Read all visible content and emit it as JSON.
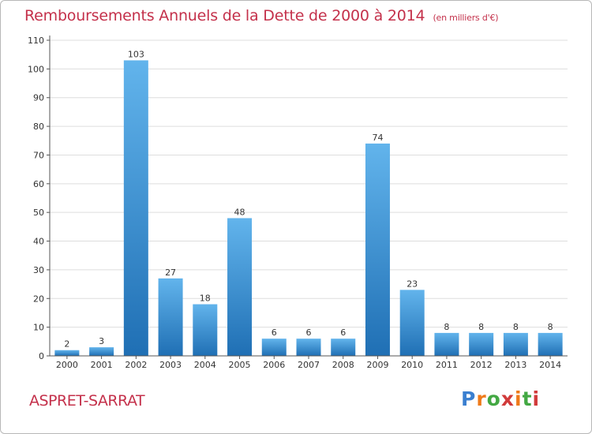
{
  "header": {
    "title": "Remboursements Annuels de la Dette de 2000 à 2014",
    "unit": "(en milliers d'€)"
  },
  "footer": {
    "commune": "ASPRET-SARRAT"
  },
  "logo": {
    "letters": [
      {
        "char": "P",
        "color": "#3a7fd0"
      },
      {
        "char": "r",
        "color": "#ef7a1a"
      },
      {
        "char": "o",
        "color": "#43a843"
      },
      {
        "char": "x",
        "color": "#d13a3a"
      },
      {
        "char": "i",
        "color": "#ef7a1a"
      },
      {
        "char": "t",
        "color": "#43a843"
      },
      {
        "char": "i",
        "color": "#d13a3a"
      }
    ]
  },
  "colors": {
    "bar_light": "#62b4ec",
    "bar_dark": "#1f6fb4",
    "title": "#c4314b",
    "axis": "#555555",
    "grid": "#dddddd"
  },
  "chart_data": {
    "type": "bar",
    "title": "Remboursements Annuels de la Dette de 2000 à 2014",
    "unit": "(en milliers d'€)",
    "categories": [
      "2000",
      "2001",
      "2002",
      "2003",
      "2004",
      "2005",
      "2006",
      "2007",
      "2008",
      "2009",
      "2010",
      "2011",
      "2012",
      "2013",
      "2014"
    ],
    "values": [
      2,
      3,
      103,
      27,
      18,
      48,
      6,
      6,
      6,
      74,
      23,
      8,
      8,
      8,
      8
    ],
    "ylim": [
      0,
      110
    ],
    "yticks": [
      0,
      10,
      20,
      30,
      40,
      50,
      60,
      70,
      80,
      90,
      100,
      110
    ],
    "grid": true,
    "data_labels": true,
    "legend": "none"
  }
}
